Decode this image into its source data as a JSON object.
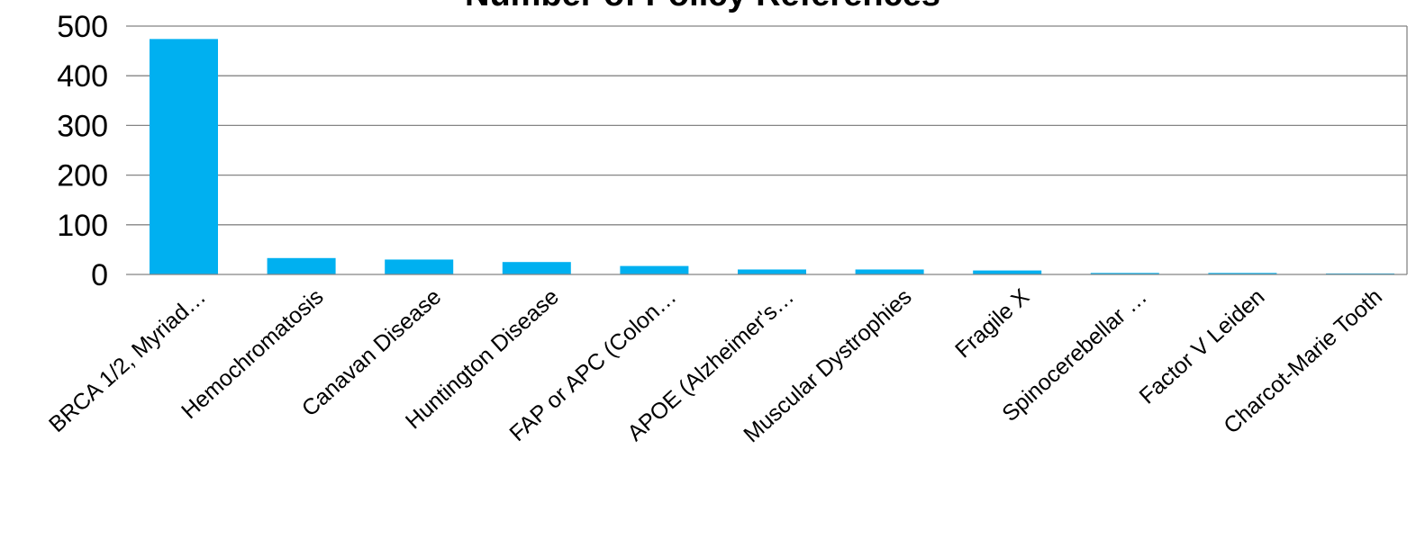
{
  "chart_data": {
    "type": "bar",
    "title": "Number of Policy References",
    "xlabel": "",
    "ylabel": "",
    "ylim": [
      0,
      500
    ],
    "yticks": [
      0,
      100,
      200,
      300,
      400,
      500
    ],
    "grid": true,
    "legend": "none",
    "categories": [
      "BRCA 1/2, Myriad…",
      "Hemochromatosis",
      "Canavan Disease",
      "Huntington Disease",
      "FAP or APC (Colon…",
      "APOE (Alzheimer's…",
      "Muscular Dystrophies",
      "Fragile X",
      "Spinocerebellar …",
      "Factor V Leiden",
      "Charcot-Marie Tooth"
    ],
    "values": [
      474,
      33,
      30,
      25,
      17,
      10,
      10,
      8,
      3,
      3,
      2
    ],
    "colors": {
      "bar": "#00B0F0",
      "grid": "#858585"
    }
  }
}
